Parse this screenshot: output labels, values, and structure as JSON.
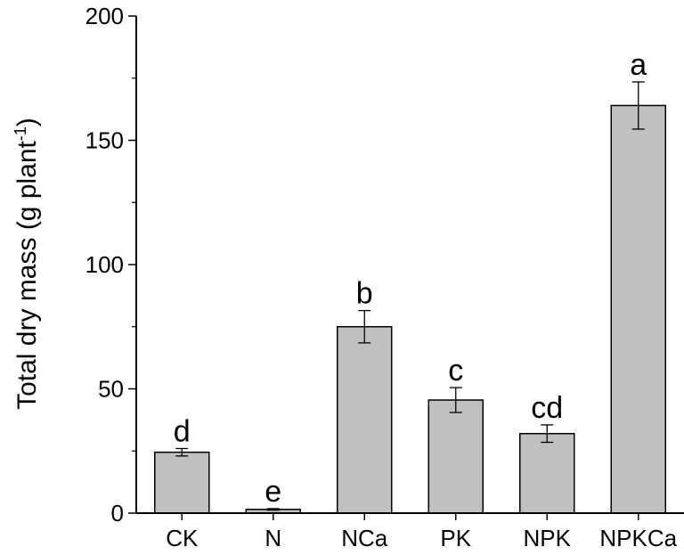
{
  "chart_data": {
    "type": "bar",
    "categories": [
      "CK",
      "N",
      "NCa",
      "PK",
      "NPK",
      "NPKCa"
    ],
    "values": [
      24.5,
      1.5,
      75,
      45.5,
      32,
      164
    ],
    "errors": [
      1.5,
      0.3,
      6.5,
      5,
      3.5,
      9.5
    ],
    "significance_letters": [
      "d",
      "e",
      "b",
      "c",
      "cd",
      "a"
    ],
    "ylabel": "Total dry mass (g plant",
    "ylabel_superscript": "-1",
    "ylabel_suffix": ")",
    "ylim": [
      0,
      200
    ],
    "yticks": [
      0,
      50,
      100,
      150,
      200
    ],
    "ytick_labels": [
      "0",
      "50",
      "100",
      "150",
      "200"
    ],
    "bar_color": "#c0c0c0",
    "grid": false,
    "legend": "none"
  }
}
